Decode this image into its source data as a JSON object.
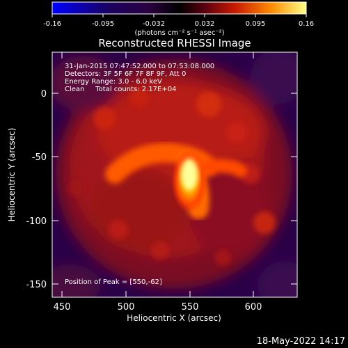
{
  "colorbar": {
    "tick_labels": [
      "-0.16",
      "-0.095",
      "-0.032",
      "0.032",
      "0.095",
      "0.16"
    ],
    "unit_label": "(photons cm⁻² s⁻¹ asec⁻²)"
  },
  "title": "Reconstructed RHESSI Image",
  "annotations": {
    "time_range": "31-Jan-2015 07:47:52.000 to 07:53:08.000",
    "detectors": "Detectors: 3F 5F 6F 7F 8F 9F, Att 0",
    "energy_range": "Energy Range: 3.0 - 6.0 keV",
    "clean_counts": "Clean     Total counts: 2.17E+04",
    "peak_position": "Position of Peak = [550,-62]"
  },
  "axes": {
    "x_label": "Heliocentric X (arcsec)",
    "y_label": "Heliocentric Y (arcsec)",
    "x_ticks": [
      "450",
      "500",
      "550",
      "600"
    ],
    "y_ticks": [
      "0",
      "-50",
      "-100",
      "-150"
    ],
    "x_range": [
      440,
      632
    ],
    "y_range": [
      -162,
      30
    ]
  },
  "timestamp": "18-May-2022 14:17",
  "colors": {
    "background": "#000000",
    "text": "#ffffff"
  }
}
